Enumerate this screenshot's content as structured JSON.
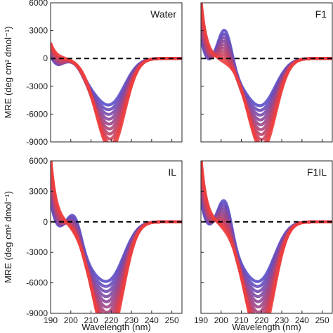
{
  "chart_data": {
    "type": "line",
    "xlabel": "Wavelength (nm)",
    "ylabel": "MRE (deg cm² dmol⁻¹)",
    "xlim": [
      190,
      255
    ],
    "ylim": [
      -9000,
      6000
    ],
    "x_ticks": [
      "190",
      "200",
      "210",
      "220",
      "230",
      "240",
      "250"
    ],
    "y_ticks": [
      "6000",
      "3000",
      "0",
      "-3000",
      "-6000",
      "-9000"
    ],
    "reference_line": {
      "y": 0,
      "style": "dashed",
      "color": "#000000"
    },
    "color_start": "#5a4fc9",
    "color_end": "#ee3e3e",
    "grid": false,
    "panels": [
      {
        "label": "Water",
        "max_x": 203,
        "max_y": 600,
        "min_x": 217,
        "min_y": -6600,
        "start_y": 1700,
        "num_curves": 10
      },
      {
        "label": "F1",
        "max_x": 202,
        "max_y": 3900,
        "min_x": 218,
        "min_y": -6500,
        "start_y": 6500,
        "num_curves": 10
      },
      {
        "label": "IL",
        "max_x": 202,
        "max_y": 2400,
        "min_x": 215,
        "min_y": -8300,
        "start_y": 6500,
        "num_curves": 12
      },
      {
        "label": "F1IL",
        "max_x": 202,
        "max_y": 3600,
        "min_x": 216,
        "min_y": -8000,
        "start_y": 6500,
        "num_curves": 12
      }
    ]
  }
}
